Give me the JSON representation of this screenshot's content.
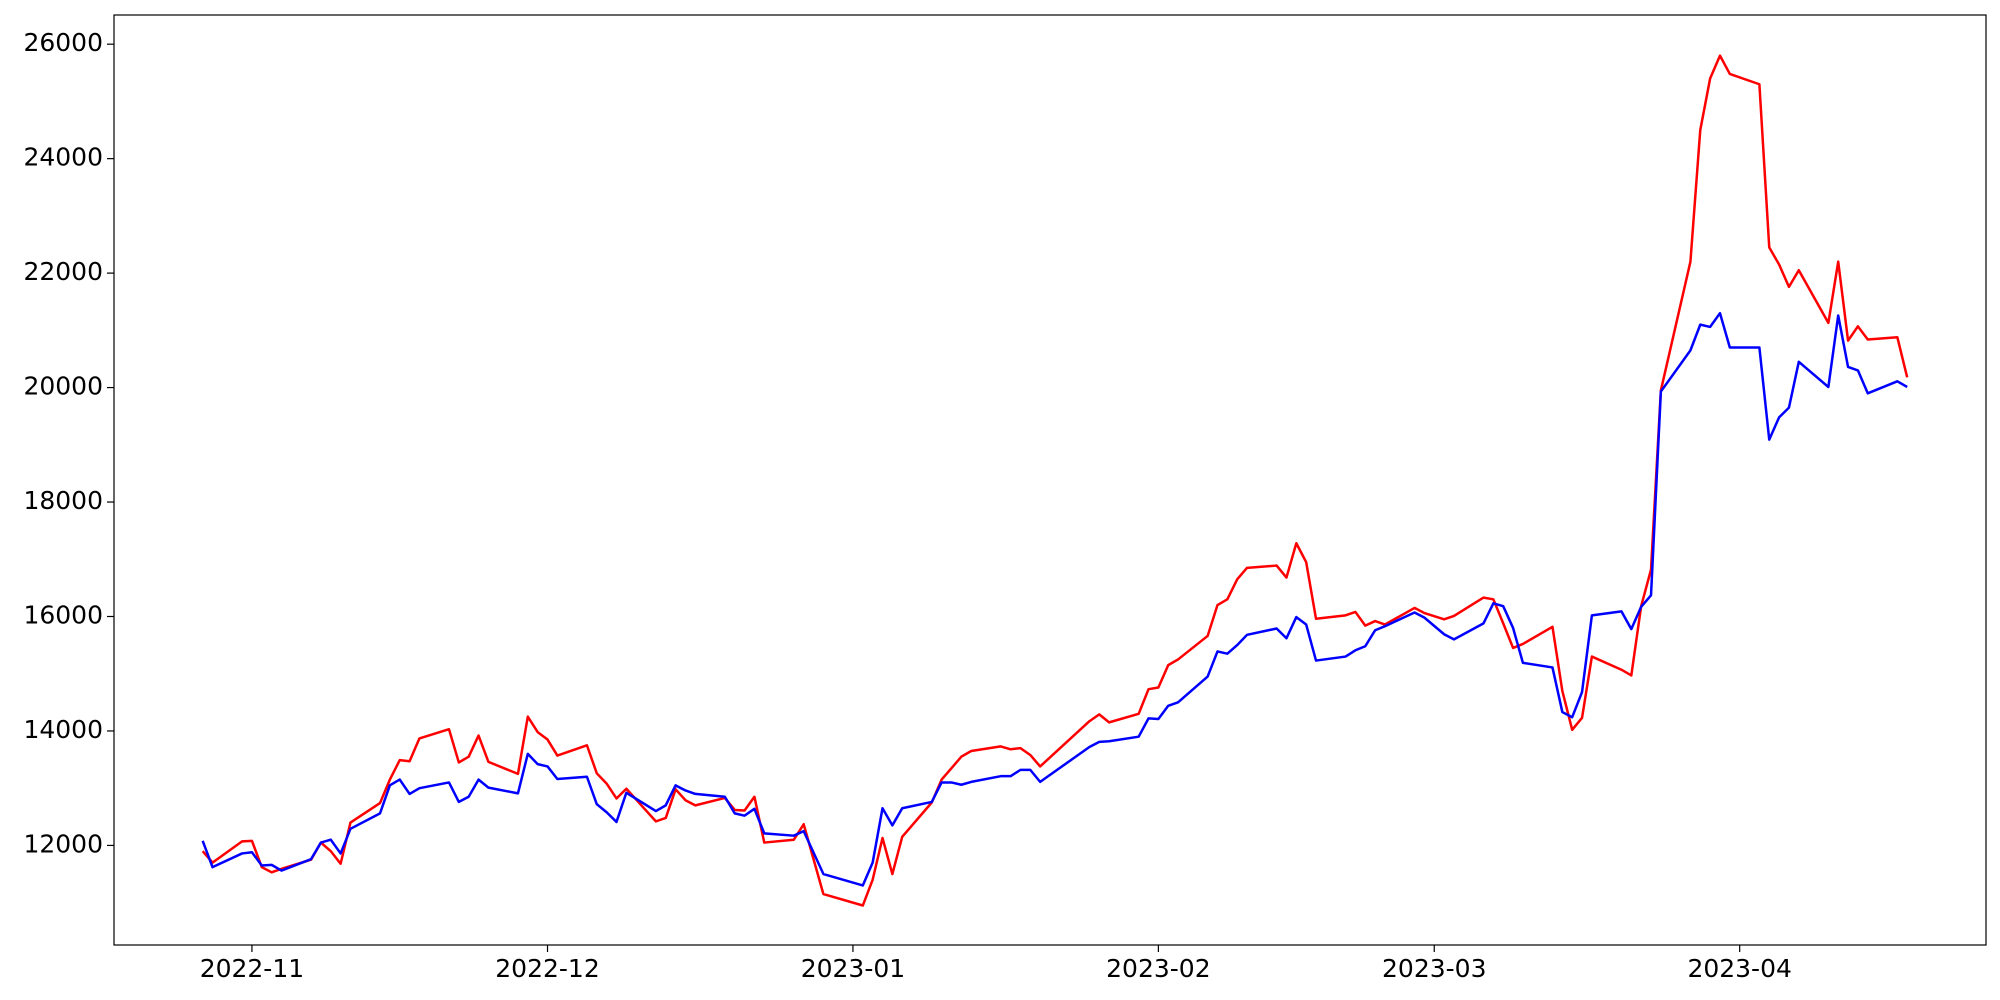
{
  "chart_data": {
    "type": "line",
    "x": [
      "2022-10-27",
      "2022-10-28",
      "2022-10-31",
      "2022-11-01",
      "2022-11-02",
      "2022-11-03",
      "2022-11-04",
      "2022-11-07",
      "2022-11-08",
      "2022-11-09",
      "2022-11-10",
      "2022-11-11",
      "2022-11-14",
      "2022-11-15",
      "2022-11-16",
      "2022-11-17",
      "2022-11-18",
      "2022-11-21",
      "2022-11-22",
      "2022-11-23",
      "2022-11-24",
      "2022-11-25",
      "2022-11-28",
      "2022-11-29",
      "2022-11-30",
      "2022-12-01",
      "2022-12-02",
      "2022-12-05",
      "2022-12-06",
      "2022-12-07",
      "2022-12-08",
      "2022-12-09",
      "2022-12-12",
      "2022-12-13",
      "2022-12-14",
      "2022-12-15",
      "2022-12-16",
      "2022-12-19",
      "2022-12-20",
      "2022-12-21",
      "2022-12-22",
      "2022-12-23",
      "2022-12-26",
      "2022-12-27",
      "2022-12-29",
      "2023-01-02",
      "2023-01-03",
      "2023-01-04",
      "2023-01-05",
      "2023-01-06",
      "2023-01-09",
      "2023-01-10",
      "2023-01-11",
      "2023-01-12",
      "2023-01-13",
      "2023-01-16",
      "2023-01-17",
      "2023-01-18",
      "2023-01-19",
      "2023-01-20",
      "2023-01-25",
      "2023-01-26",
      "2023-01-27",
      "2023-01-30",
      "2023-01-31",
      "2023-02-01",
      "2023-02-02",
      "2023-02-03",
      "2023-02-06",
      "2023-02-07",
      "2023-02-08",
      "2023-02-09",
      "2023-02-10",
      "2023-02-13",
      "2023-02-14",
      "2023-02-15",
      "2023-02-16",
      "2023-02-17",
      "2023-02-20",
      "2023-02-21",
      "2023-02-22",
      "2023-02-23",
      "2023-02-24",
      "2023-02-27",
      "2023-02-28",
      "2023-03-02",
      "2023-03-03",
      "2023-03-06",
      "2023-03-07",
      "2023-03-08",
      "2023-03-09",
      "2023-03-10",
      "2023-03-13",
      "2023-03-14",
      "2023-03-15",
      "2023-03-16",
      "2023-03-17",
      "2023-03-20",
      "2023-03-21",
      "2023-03-22",
      "2023-03-23",
      "2023-03-24",
      "2023-03-27",
      "2023-03-28",
      "2023-03-29",
      "2023-03-30",
      "2023-03-31",
      "2023-04-03",
      "2023-04-04",
      "2023-04-05",
      "2023-04-06",
      "2023-04-07",
      "2023-04-10",
      "2023-04-11",
      "2023-04-12",
      "2023-04-13",
      "2023-04-14",
      "2023-04-17",
      "2023-04-18"
    ],
    "series": [
      {
        "color": "red",
        "values": [
          11900,
          11700,
          12070,
          12080,
          11620,
          11530,
          11590,
          11750,
          12050,
          11900,
          11680,
          12400,
          12740,
          13150,
          13490,
          13470,
          13870,
          14030,
          13450,
          13550,
          13920,
          13460,
          13250,
          14250,
          13980,
          13850,
          13570,
          13750,
          13260,
          13080,
          12820,
          12990,
          12420,
          12480,
          12980,
          12790,
          12700,
          12830,
          12620,
          12610,
          12850,
          12050,
          12100,
          12370,
          11150,
          10950,
          11400,
          12130,
          11500,
          12150,
          12750,
          13150,
          13350,
          13550,
          13650,
          13730,
          13680,
          13700,
          13580,
          13380,
          14170,
          14290,
          14150,
          14300,
          14730,
          14760,
          15150,
          15250,
          15660,
          16200,
          16300,
          16650,
          16850,
          16890,
          16680,
          17280,
          16950,
          15960,
          16020,
          16080,
          15840,
          15920,
          15860,
          16150,
          16060,
          15950,
          16010,
          16330,
          16300,
          15880,
          15450,
          15520,
          15820,
          14700,
          14020,
          14230,
          15300,
          15070,
          14970,
          16180,
          16820,
          19950,
          22200,
          24500,
          25400,
          25800,
          25480,
          25300,
          22450,
          22150,
          21760,
          22050,
          21130,
          22200,
          20820,
          21070,
          20840,
          20880,
          20180
        ]
      },
      {
        "color": "blue",
        "values": [
          12080,
          11620,
          11860,
          11880,
          11650,
          11660,
          11560,
          11760,
          12050,
          12100,
          11860,
          12290,
          12560,
          13050,
          13150,
          12900,
          13000,
          13100,
          12760,
          12850,
          13150,
          13010,
          12910,
          13600,
          13420,
          13380,
          13160,
          13200,
          12720,
          12580,
          12410,
          12920,
          12600,
          12700,
          13050,
          12960,
          12900,
          12850,
          12560,
          12520,
          12640,
          12210,
          12170,
          12250,
          11500,
          11300,
          11700,
          12650,
          12350,
          12650,
          12760,
          13100,
          13100,
          13060,
          13110,
          13210,
          13210,
          13320,
          13320,
          13110,
          13720,
          13810,
          13820,
          13900,
          14220,
          14210,
          14440,
          14500,
          14950,
          15390,
          15350,
          15500,
          15680,
          15790,
          15620,
          15990,
          15860,
          15230,
          15300,
          15410,
          15480,
          15760,
          15830,
          16070,
          15980,
          15690,
          15600,
          15880,
          16230,
          16180,
          15800,
          15190,
          15110,
          14330,
          14240,
          14680,
          16020,
          16090,
          15780,
          16170,
          16370,
          19930,
          20650,
          21100,
          21060,
          21300,
          20700,
          20700,
          19090,
          19480,
          19650,
          20450,
          20010,
          21260,
          20360,
          20300,
          19900,
          20110,
          20010
        ]
      }
    ],
    "xlim": [
      "2022-10-18",
      "2023-04-26"
    ],
    "xticks": [
      "2022-11",
      "2022-12",
      "2023-01",
      "2023-02",
      "2023-03",
      "2023-04"
    ],
    "ylim": [
      10260,
      26510
    ],
    "yticks": [
      12000,
      14000,
      16000,
      18000,
      20000,
      22000,
      24000,
      26000
    ],
    "grid": false
  }
}
